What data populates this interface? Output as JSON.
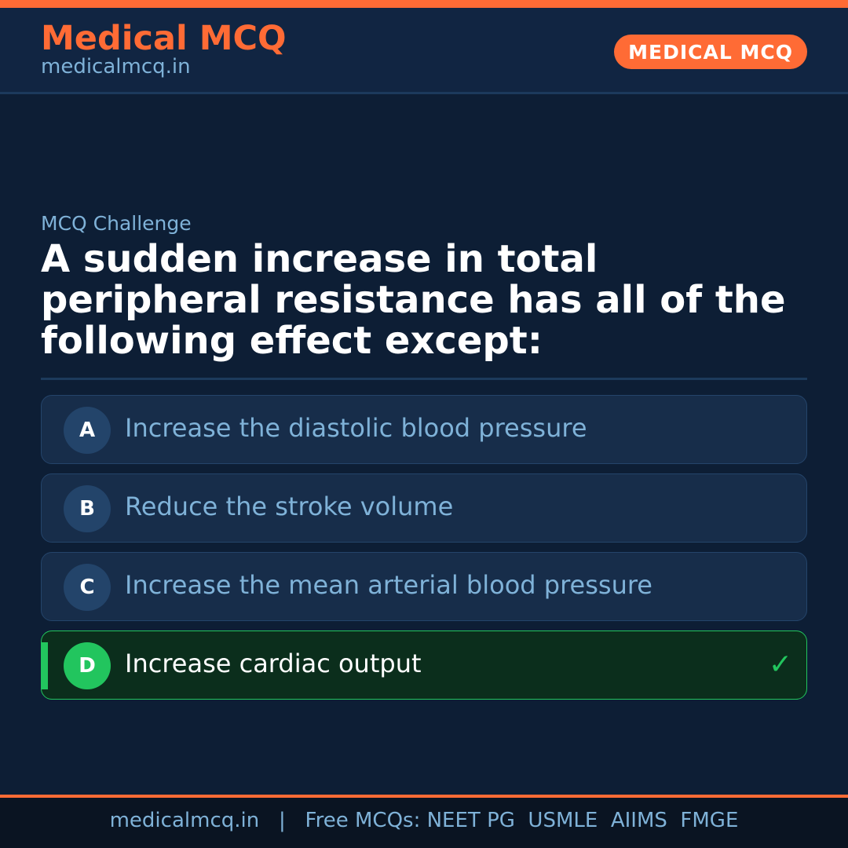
{
  "header": {
    "brand": "Medical MCQ",
    "site": "medicalmcq.in",
    "badge": "MEDICAL MCQ"
  },
  "main": {
    "kicker": "MCQ Challenge",
    "question": "A sudden increase in total peripheral resistance has all of the following effect except:",
    "options": [
      {
        "letter": "A",
        "text": "Increase the diastolic blood pressure"
      },
      {
        "letter": "B",
        "text": "Reduce the stroke volume"
      },
      {
        "letter": "C",
        "text": "Increase the mean arterial blood pressure"
      },
      {
        "letter": "D",
        "text": "Increase cardiac output",
        "correct": true
      }
    ],
    "check_icon": "check-icon"
  },
  "footer": {
    "text": "medicalmcq.in   |   Free MCQs: NEET PG  USMLE  AIIMS  FMGE"
  },
  "colors": {
    "accent": "#ff6b35",
    "background": "#0d1e35",
    "correct": "#22c55e",
    "muted": "#7fb2d8"
  }
}
